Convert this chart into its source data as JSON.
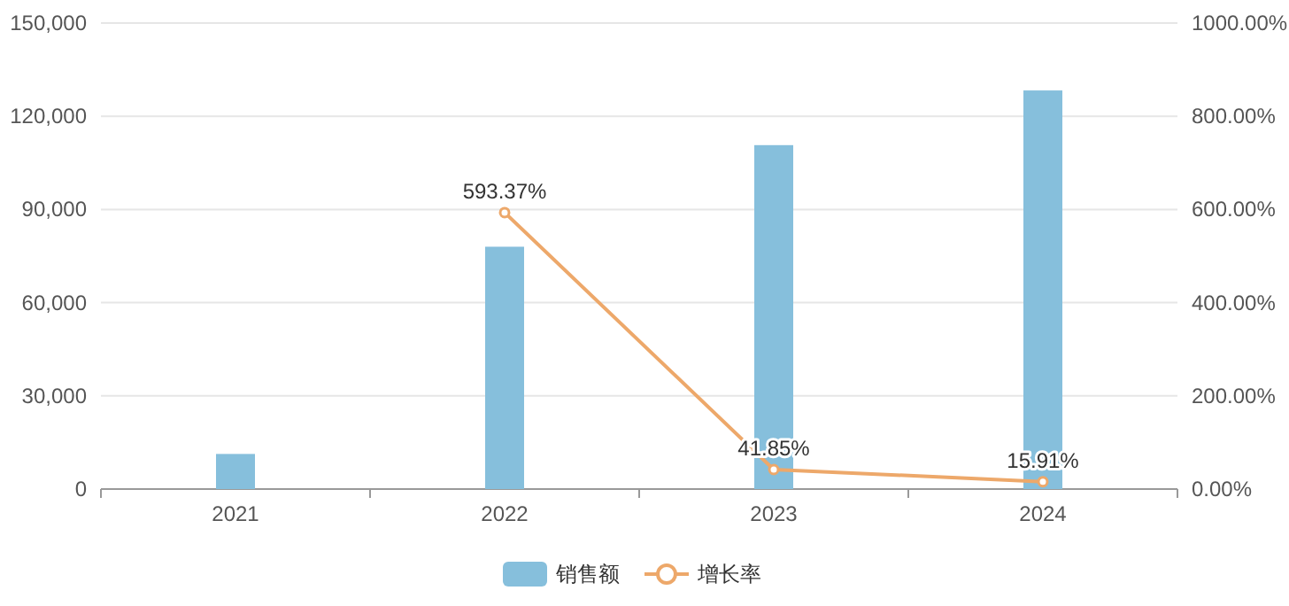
{
  "chart_data": {
    "type": "bar",
    "categories": [
      "2021",
      "2022",
      "2023",
      "2024"
    ],
    "series": [
      {
        "name": "销售额",
        "color": "#86bfdc",
        "values": [
          11300,
          78000,
          110700,
          128300
        ]
      },
      {
        "name": "增长率",
        "type": "line",
        "axis": "y2",
        "color": "#eda86a",
        "marker": "circle",
        "values": [
          null,
          593.37,
          41.85,
          15.91
        ],
        "value_labels": [
          null,
          "593.37%",
          "41.85%",
          "15.91%"
        ]
      }
    ],
    "ylim": [
      0,
      150000
    ],
    "yticks": [
      0,
      {
        "value": 30000,
        "label": "30,000"
      },
      {
        "value": 60000,
        "label": "60,000"
      },
      {
        "value": 90000,
        "label": "90,000"
      },
      {
        "value": 120000,
        "label": "120,000"
      },
      {
        "value": 150000,
        "label": "150,000"
      }
    ],
    "y2lim": [
      0,
      1000
    ],
    "y2ticks": [
      {
        "value": 0,
        "label": "0.00%"
      },
      {
        "value": 200,
        "label": "200.00%"
      },
      {
        "value": 400,
        "label": "400.00%"
      },
      {
        "value": 600,
        "label": "600.00%"
      },
      {
        "value": 800,
        "label": "800.00%"
      },
      {
        "value": 1000,
        "label": "1000.00%"
      }
    ],
    "grid": "y",
    "legend": "bottom"
  }
}
